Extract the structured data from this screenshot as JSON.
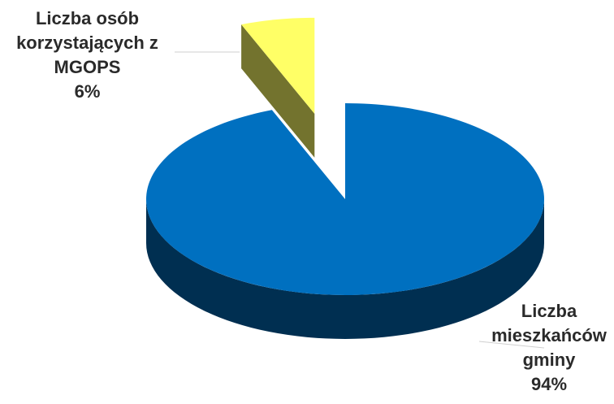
{
  "chart_data": {
    "type": "pie",
    "style": "3d-exploded",
    "slices": [
      {
        "label_lines": [
          "Liczba",
          "mieszkańców",
          "gminy"
        ],
        "percent_text": "94%",
        "value": 94,
        "color": "#0070c0"
      },
      {
        "label_lines": [
          "Liczba osób",
          "korzystających z",
          "MGOPS"
        ],
        "percent_text": "6%",
        "value": 6,
        "color": "#ffff66"
      }
    ],
    "legend": "none"
  }
}
